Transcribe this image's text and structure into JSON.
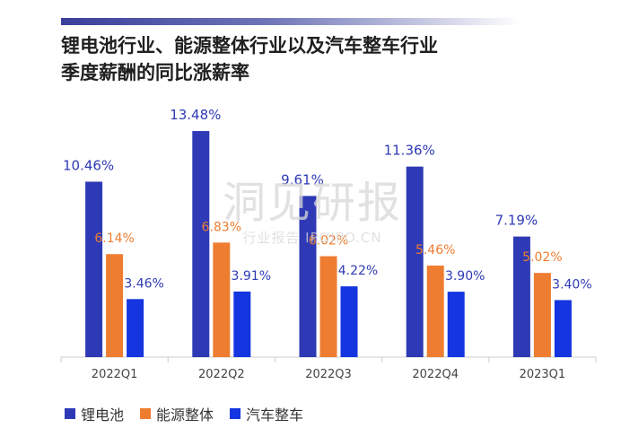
{
  "header": {
    "title_line1": "锂电池行业、能源整体行业以及汽车整车行业",
    "title_line2": "季度薪酬的同比涨薪率"
  },
  "watermark": {
    "main": "洞见研报",
    "sub": "行业报告 IPOIPO.CN"
  },
  "colors": {
    "accent": "#3a3f9a",
    "series1": "#2e3ab5",
    "series2": "#ee7d31",
    "series3": "#1435e0",
    "axis": "#cccccc"
  },
  "chart_data": {
    "type": "bar",
    "categories": [
      "2022Q1",
      "2022Q2",
      "2022Q3",
      "2022Q4",
      "2023Q1"
    ],
    "series": [
      {
        "name": "锂电池",
        "values": [
          10.46,
          13.48,
          9.61,
          11.36,
          7.19
        ],
        "labels": [
          "10.46%",
          "13.48%",
          "9.61%",
          "11.36%",
          "7.19%"
        ]
      },
      {
        "name": "能源整体",
        "values": [
          6.14,
          6.83,
          6.02,
          5.46,
          5.02
        ],
        "labels": [
          "6.14%",
          "6.83%",
          "6.02%",
          "5.46%",
          "5.02%"
        ]
      },
      {
        "name": "汽车整车",
        "values": [
          3.46,
          3.91,
          4.22,
          3.9,
          3.4
        ],
        "labels": [
          "3.46%",
          "3.91%",
          "4.22%",
          "3.90%",
          "3.40%"
        ]
      }
    ],
    "ylim": [
      0,
      14
    ],
    "grid": false,
    "legend_position": "bottom-left"
  }
}
